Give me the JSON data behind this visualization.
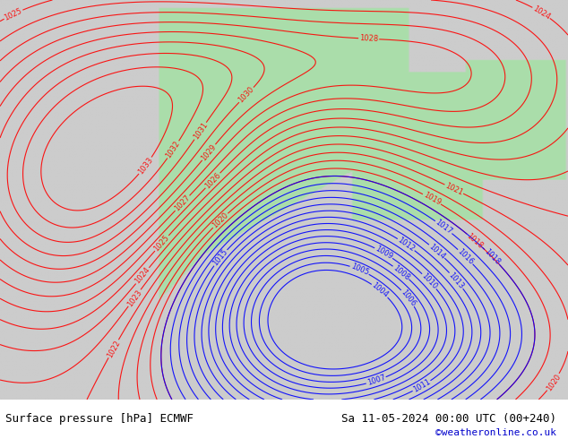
{
  "title_left": "Surface pressure [hPa] ECMWF",
  "title_right": "Sa 11-05-2024 00:00 UTC (00+240)",
  "credit": "©weatheronline.co.uk",
  "bg_color": "#cccccc",
  "land_color": "#aaddaa",
  "fig_width": 6.34,
  "fig_height": 4.9,
  "dpi": 100,
  "bottom_bar_color": "#f0f0f0",
  "bottom_bar_height": 0.08
}
